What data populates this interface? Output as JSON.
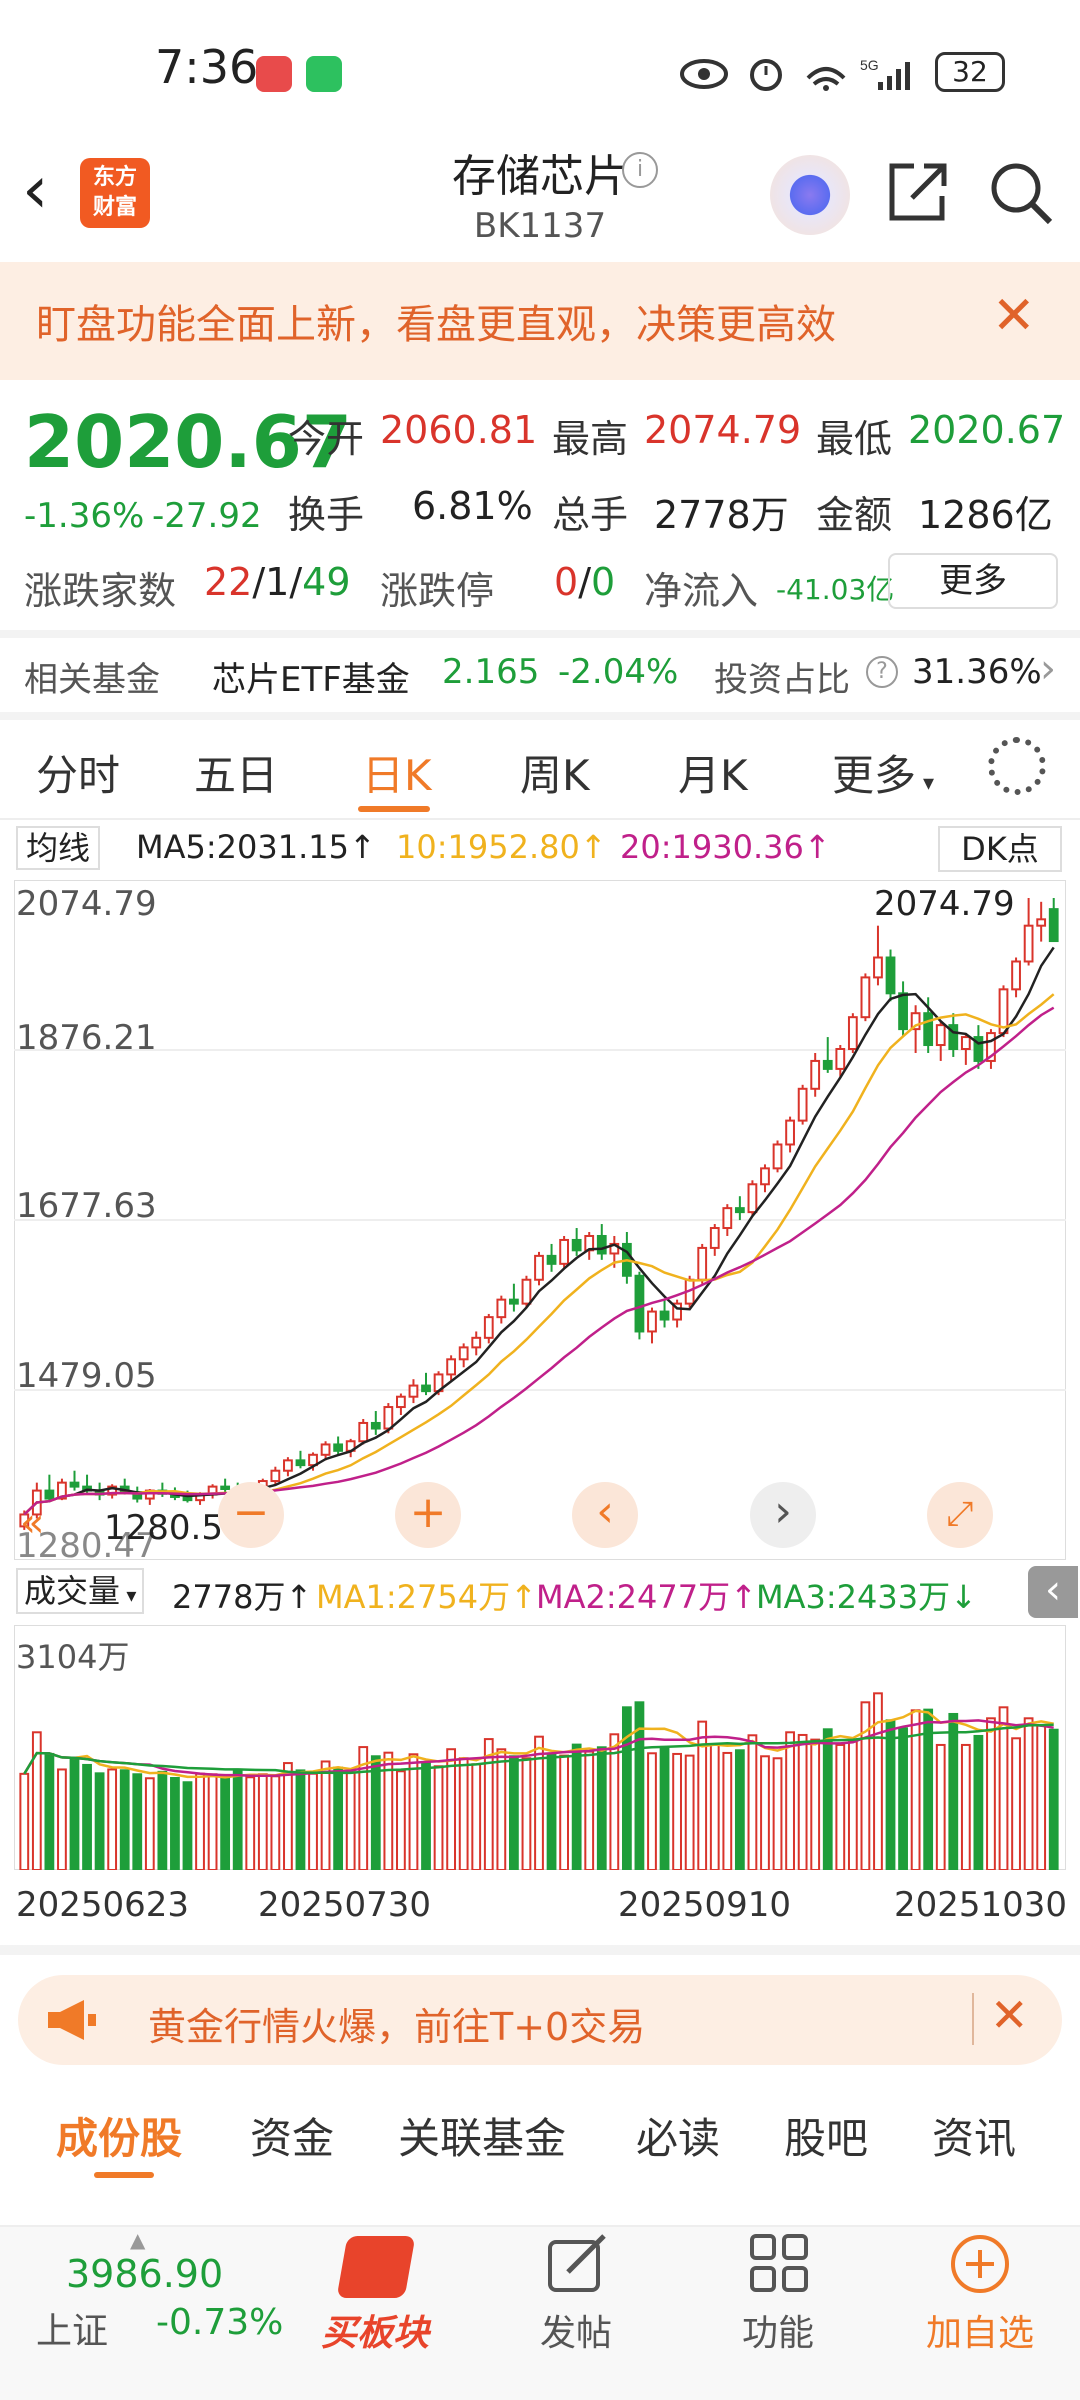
{
  "status": {
    "time": "7:36",
    "battery": "32"
  },
  "header": {
    "title": "存储芯片",
    "code": "BK1137",
    "back": "‹",
    "logo_top": "东方",
    "logo_bottom": "财富"
  },
  "banner": {
    "text": "盯盘功能全面上新，看盘更直观，决策更高效",
    "close": "✕"
  },
  "quote": {
    "price": "2020.67",
    "change_pct": "-1.36%",
    "change_amt": "-27.92",
    "open_label": "今开",
    "open": "2060.81",
    "high_label": "最高",
    "high": "2074.79",
    "low_label": "最低",
    "low": "2020.67",
    "turnover_label": "换手",
    "turnover": "6.81%",
    "volume_label": "总手",
    "volume": "2778万",
    "amount_label": "金额",
    "amount": "1286亿",
    "updown_label": "涨跌家数",
    "up": "22",
    "flat": "1",
    "down": "49",
    "limit_label": "涨跌停",
    "limit_up": "0",
    "limit_down": "0",
    "netflow_label": "净流入",
    "netflow": "-41.03亿",
    "more": "更多"
  },
  "fund": {
    "label": "相关基金",
    "name": "芯片ETF基金",
    "price": "2.165",
    "pct": "-2.04%",
    "ratio_label": "投资占比",
    "ratio": "31.36%"
  },
  "tabs": [
    "分时",
    "五日",
    "日K",
    "周K",
    "月K",
    "更多"
  ],
  "ma": {
    "selector": "均线",
    "ma5": "MA5:2031.15↑",
    "ma10": "10:1952.80↑",
    "ma20": "20:1930.36↑",
    "dk": "DK点"
  },
  "chart": {
    "y_labels": [
      "2074.79",
      "1876.21",
      "1677.63",
      "1479.05",
      "1280.47"
    ],
    "max_label": "2074.79",
    "min_label": "1280.58",
    "colors": {
      "up": "#d9342b",
      "down": "#1e9e3a",
      "ma5": "#222222",
      "ma10": "#f0b21e",
      "ma20": "#c0208a"
    }
  },
  "chart_data": {
    "type": "candlestick",
    "ylim": [
      1280.47,
      2074.79
    ],
    "ohlc_approx": [
      [
        1285,
        1305,
        1280.58,
        1300
      ],
      [
        1300,
        1340,
        1295,
        1330
      ],
      [
        1330,
        1350,
        1315,
        1320
      ],
      [
        1320,
        1345,
        1318,
        1340
      ],
      [
        1340,
        1355,
        1330,
        1335
      ],
      [
        1335,
        1350,
        1325,
        1330
      ],
      [
        1330,
        1340,
        1318,
        1325
      ],
      [
        1325,
        1338,
        1320,
        1335
      ],
      [
        1335,
        1345,
        1325,
        1328
      ],
      [
        1328,
        1335,
        1315,
        1320
      ],
      [
        1320,
        1332,
        1312,
        1330
      ],
      [
        1330,
        1340,
        1322,
        1326
      ],
      [
        1326,
        1334,
        1318,
        1322
      ],
      [
        1322,
        1330,
        1315,
        1318
      ],
      [
        1318,
        1328,
        1312,
        1325
      ],
      [
        1325,
        1338,
        1320,
        1335
      ],
      [
        1335,
        1345,
        1328,
        1332
      ],
      [
        1332,
        1340,
        1322,
        1326
      ],
      [
        1326,
        1335,
        1320,
        1330
      ],
      [
        1330,
        1345,
        1325,
        1342
      ],
      [
        1342,
        1360,
        1338,
        1355
      ],
      [
        1355,
        1372,
        1348,
        1368
      ],
      [
        1368,
        1380,
        1358,
        1362
      ],
      [
        1362,
        1378,
        1355,
        1375
      ],
      [
        1375,
        1392,
        1368,
        1388
      ],
      [
        1388,
        1398,
        1375,
        1380
      ],
      [
        1380,
        1395,
        1372,
        1392
      ],
      [
        1392,
        1420,
        1388,
        1415
      ],
      [
        1415,
        1430,
        1400,
        1408
      ],
      [
        1408,
        1440,
        1402,
        1435
      ],
      [
        1435,
        1452,
        1425,
        1448
      ],
      [
        1448,
        1470,
        1440,
        1462
      ],
      [
        1462,
        1478,
        1450,
        1455
      ],
      [
        1455,
        1480,
        1450,
        1476
      ],
      [
        1476,
        1500,
        1468,
        1495
      ],
      [
        1495,
        1515,
        1485,
        1510
      ],
      [
        1510,
        1530,
        1500,
        1522
      ],
      [
        1522,
        1552,
        1515,
        1548
      ],
      [
        1548,
        1575,
        1540,
        1570
      ],
      [
        1570,
        1590,
        1555,
        1565
      ],
      [
        1565,
        1600,
        1560,
        1595
      ],
      [
        1595,
        1630,
        1588,
        1625
      ],
      [
        1625,
        1640,
        1605,
        1615
      ],
      [
        1615,
        1650,
        1610,
        1645
      ],
      [
        1645,
        1660,
        1625,
        1632
      ],
      [
        1632,
        1655,
        1620,
        1650
      ],
      [
        1650,
        1665,
        1620,
        1628
      ],
      [
        1628,
        1650,
        1610,
        1640
      ],
      [
        1640,
        1655,
        1590,
        1600
      ],
      [
        1600,
        1605,
        1520,
        1530
      ],
      [
        1530,
        1560,
        1515,
        1555
      ],
      [
        1555,
        1570,
        1535,
        1545
      ],
      [
        1545,
        1570,
        1535,
        1565
      ],
      [
        1565,
        1600,
        1560,
        1595
      ],
      [
        1595,
        1640,
        1590,
        1635
      ],
      [
        1635,
        1665,
        1625,
        1660
      ],
      [
        1660,
        1690,
        1650,
        1685
      ],
      [
        1685,
        1700,
        1670,
        1680
      ],
      [
        1680,
        1720,
        1675,
        1715
      ],
      [
        1715,
        1740,
        1705,
        1735
      ],
      [
        1735,
        1770,
        1730,
        1765
      ],
      [
        1765,
        1800,
        1755,
        1795
      ],
      [
        1795,
        1840,
        1790,
        1835
      ],
      [
        1835,
        1880,
        1825,
        1870
      ],
      [
        1870,
        1900,
        1855,
        1860
      ],
      [
        1860,
        1890,
        1850,
        1885
      ],
      [
        1885,
        1930,
        1880,
        1925
      ],
      [
        1925,
        1980,
        1920,
        1975
      ],
      [
        1975,
        2040,
        1965,
        2000
      ],
      [
        2000,
        2010,
        1945,
        1955
      ],
      [
        1955,
        1970,
        1900,
        1910
      ],
      [
        1910,
        1940,
        1880,
        1930
      ],
      [
        1930,
        1950,
        1880,
        1890
      ],
      [
        1890,
        1920,
        1870,
        1915
      ],
      [
        1915,
        1930,
        1875,
        1885
      ],
      [
        1885,
        1905,
        1865,
        1900
      ],
      [
        1900,
        1915,
        1860,
        1870
      ],
      [
        1870,
        1910,
        1860,
        1905
      ],
      [
        1905,
        1965,
        1900,
        1960
      ],
      [
        1960,
        2000,
        1950,
        1995
      ],
      [
        1995,
        2074.79,
        1990,
        2040
      ],
      [
        2040,
        2070,
        2020,
        2048
      ],
      [
        2060.81,
        2074.79,
        2020.67,
        2020.67
      ]
    ]
  },
  "volume": {
    "selector": "成交量",
    "value": "2778万↑",
    "ma1": "MA1:2754万↑",
    "ma2": "MA2:2477万↑",
    "ma3": "MA3:2433万↓",
    "ymax": "3104万"
  },
  "x_labels": [
    "20250623",
    "20250730",
    "20250910",
    "20251030"
  ],
  "ad": {
    "text": "黄金行情火爆，前往T+0交易",
    "close": "✕"
  },
  "bottom_tabs": [
    "成份股",
    "资金",
    "关联基金",
    "必读",
    "股吧",
    "资讯"
  ],
  "bottom_bar": {
    "index_value": "3986.90",
    "index_name": "上证",
    "index_pct": "-0.73%",
    "buy": "买板块",
    "post": "发帖",
    "func": "功能",
    "add": "加自选"
  }
}
